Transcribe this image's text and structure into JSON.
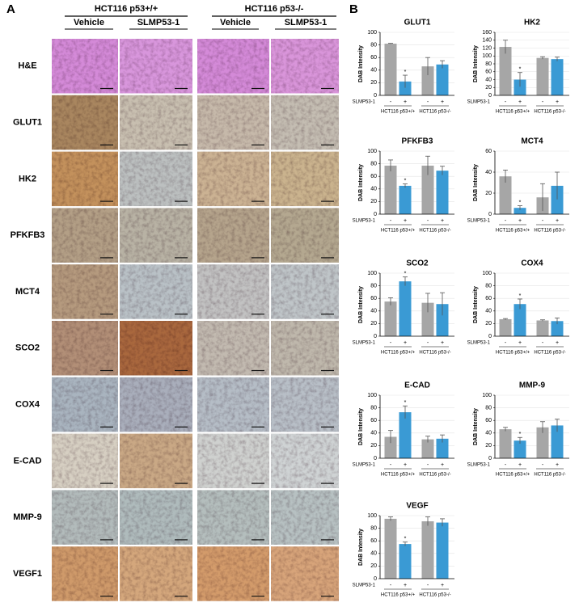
{
  "panel_a": {
    "label": "A",
    "groups": [
      "HCT116 p53+/+",
      "HCT116 p53-/-"
    ],
    "conditions": [
      "Vehicle",
      "SLMP53-1",
      "Vehicle",
      "SLMP53-1"
    ],
    "rows": [
      "H&E",
      "GLUT1",
      "HK2",
      "PFKFB3",
      "MCT4",
      "SCO2",
      "COX4",
      "E-CAD",
      "MMP-9",
      "VEGF1"
    ]
  },
  "panel_b_label": "B",
  "chart_data": [
    {
      "type": "bar",
      "title": "GLUT1",
      "y_label": "DAB Intensity",
      "x_label": "SLMP53-1",
      "categories": [
        "-",
        "+",
        "-",
        "+"
      ],
      "groups": [
        "HCT116 p53+/+",
        "HCT116 p53-/-"
      ],
      "values": [
        82,
        22,
        46,
        49
      ],
      "errors": [
        0.5,
        10,
        14,
        6
      ],
      "colors": [
        "#a6a6a6",
        "#3a9ad4",
        "#a6a6a6",
        "#3a9ad4"
      ],
      "ylim": [
        0,
        100
      ],
      "yticks": [
        0,
        20,
        40,
        60,
        80,
        100
      ],
      "annotations": [
        {
          "index": 1,
          "text": "*"
        }
      ]
    },
    {
      "type": "bar",
      "title": "HK2",
      "y_label": "DAB Intensity",
      "x_label": "SLMP53-1",
      "categories": [
        "-",
        "+",
        "-",
        "+"
      ],
      "groups": [
        "HCT116 p53+/+",
        "HCT116 p53-/-"
      ],
      "values": [
        123,
        40,
        95,
        92
      ],
      "errors": [
        17,
        18,
        3,
        5
      ],
      "colors": [
        "#a6a6a6",
        "#3a9ad4",
        "#a6a6a6",
        "#3a9ad4"
      ],
      "ylim": [
        0,
        160
      ],
      "yticks": [
        0,
        20,
        40,
        60,
        80,
        100,
        120,
        140,
        160
      ],
      "annotations": [
        {
          "index": 1,
          "text": "*"
        }
      ]
    },
    {
      "type": "bar",
      "title": "PFKFB3",
      "y_label": "DAB Intensity",
      "x_label": "SLMP53-1",
      "categories": [
        "-",
        "+",
        "-",
        "+"
      ],
      "groups": [
        "HCT116 p53+/+",
        "HCT116 p53-/-"
      ],
      "values": [
        77,
        45,
        77,
        69
      ],
      "errors": [
        9,
        3,
        15,
        7
      ],
      "colors": [
        "#a6a6a6",
        "#3a9ad4",
        "#a6a6a6",
        "#3a9ad4"
      ],
      "ylim": [
        0,
        100
      ],
      "yticks": [
        0,
        20,
        40,
        60,
        80,
        100
      ],
      "annotations": [
        {
          "index": 1,
          "text": "*"
        }
      ]
    },
    {
      "type": "bar",
      "title": "MCT4",
      "y_label": "DAB Intensity",
      "x_label": "SLMP53-1",
      "categories": [
        "-",
        "+",
        "-",
        "+"
      ],
      "groups": [
        "HCT116 p53+/+",
        "HCT116 p53-/-"
      ],
      "values": [
        36,
        6,
        16,
        27
      ],
      "errors": [
        6,
        2,
        13,
        13
      ],
      "colors": [
        "#a6a6a6",
        "#3a9ad4",
        "#a6a6a6",
        "#3a9ad4"
      ],
      "ylim": [
        0,
        60
      ],
      "yticks": [
        0,
        20,
        40,
        60
      ],
      "annotations": [
        {
          "index": 1,
          "text": "*"
        }
      ]
    },
    {
      "type": "bar",
      "title": "SCO2",
      "y_label": "DAB Intensity",
      "x_label": "SLMP53-1",
      "categories": [
        "-",
        "+",
        "-",
        "+"
      ],
      "groups": [
        "HCT116 p53+/+",
        "HCT116 p53-/-"
      ],
      "values": [
        55,
        87,
        53,
        51
      ],
      "errors": [
        6,
        7,
        15,
        18
      ],
      "colors": [
        "#a6a6a6",
        "#3a9ad4",
        "#a6a6a6",
        "#3a9ad4"
      ],
      "ylim": [
        0,
        100
      ],
      "yticks": [
        0,
        20,
        40,
        60,
        80,
        100
      ],
      "annotations": [
        {
          "index": 1,
          "text": "*"
        }
      ]
    },
    {
      "type": "bar",
      "title": "COX4",
      "y_label": "DAB Intensity",
      "x_label": "SLMP53-1",
      "categories": [
        "-",
        "+",
        "-",
        "+"
      ],
      "groups": [
        "HCT116 p53+/+",
        "HCT116 p53-/-"
      ],
      "values": [
        27,
        51,
        25,
        24
      ],
      "errors": [
        1,
        8,
        1,
        5
      ],
      "colors": [
        "#a6a6a6",
        "#3a9ad4",
        "#a6a6a6",
        "#3a9ad4"
      ],
      "ylim": [
        0,
        100
      ],
      "yticks": [
        0,
        20,
        40,
        60,
        80,
        100
      ],
      "annotations": [
        {
          "index": 1,
          "text": "*"
        }
      ]
    },
    {
      "type": "bar",
      "title": "E-CAD",
      "y_label": "DAB Intensity",
      "x_label": "SLMP53-1",
      "categories": [
        "-",
        "+",
        "-",
        "+"
      ],
      "groups": [
        "HCT116 p53+/+",
        "HCT116 p53-/-"
      ],
      "values": [
        34,
        73,
        30,
        31
      ],
      "errors": [
        10,
        10,
        5,
        6
      ],
      "colors": [
        "#a6a6a6",
        "#3a9ad4",
        "#a6a6a6",
        "#3a9ad4"
      ],
      "ylim": [
        0,
        100
      ],
      "yticks": [
        0,
        20,
        40,
        60,
        80,
        100
      ],
      "annotations": [
        {
          "index": 1,
          "text": "*"
        }
      ]
    },
    {
      "type": "bar",
      "title": "MMP-9",
      "y_label": "DAB Intensity",
      "x_label": "SLMP53-1",
      "categories": [
        "-",
        "+",
        "-",
        "+"
      ],
      "groups": [
        "HCT116 p53+/+",
        "HCT116 p53-/-"
      ],
      "values": [
        46,
        28,
        49,
        52
      ],
      "errors": [
        3,
        5,
        9,
        10
      ],
      "colors": [
        "#a6a6a6",
        "#3a9ad4",
        "#a6a6a6",
        "#3a9ad4"
      ],
      "ylim": [
        0,
        100
      ],
      "yticks": [
        0,
        20,
        40,
        60,
        80,
        100
      ],
      "annotations": [
        {
          "index": 1,
          "text": "*"
        }
      ]
    },
    {
      "type": "bar",
      "title": "VEGF",
      "y_label": "DAB Intensity",
      "x_label": "SLMP53-1",
      "categories": [
        "-",
        "+",
        "-",
        "+"
      ],
      "groups": [
        "HCT116 p53+/+",
        "HCT116 p53-/-"
      ],
      "values": [
        95,
        55,
        91,
        89
      ],
      "errors": [
        3,
        3,
        7,
        6
      ],
      "colors": [
        "#a6a6a6",
        "#3a9ad4",
        "#a6a6a6",
        "#3a9ad4"
      ],
      "ylim": [
        0,
        100
      ],
      "yticks": [
        0,
        20,
        40,
        60,
        80,
        100
      ],
      "annotations": [
        {
          "index": 1,
          "text": "*"
        }
      ]
    }
  ]
}
